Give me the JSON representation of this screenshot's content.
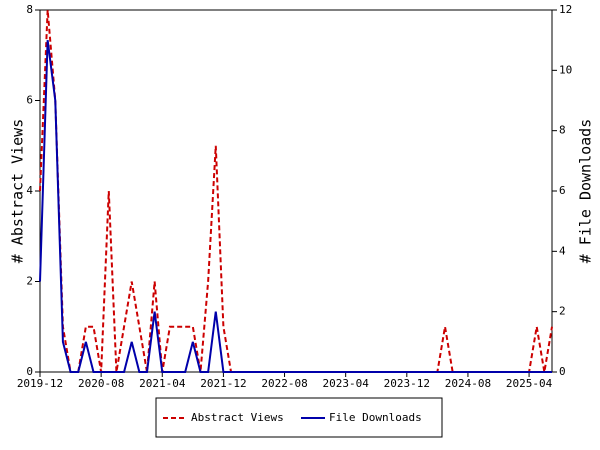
{
  "chart_data": {
    "type": "line",
    "x": [
      "2019-12",
      "2020-01",
      "2020-02",
      "2020-03",
      "2020-04",
      "2020-05",
      "2020-06",
      "2020-07",
      "2020-08",
      "2020-09",
      "2020-10",
      "2020-11",
      "2020-12",
      "2021-01",
      "2021-02",
      "2021-03",
      "2021-04",
      "2021-05",
      "2021-06",
      "2021-07",
      "2021-08",
      "2021-09",
      "2021-10",
      "2021-11",
      "2021-12",
      "2022-01",
      "2022-02",
      "2022-03",
      "2022-04",
      "2022-05",
      "2022-06",
      "2022-07",
      "2022-08",
      "2022-09",
      "2022-10",
      "2022-11",
      "2022-12",
      "2023-01",
      "2023-02",
      "2023-03",
      "2023-04",
      "2023-05",
      "2023-06",
      "2023-07",
      "2023-08",
      "2023-09",
      "2023-10",
      "2023-11",
      "2023-12",
      "2024-01",
      "2024-02",
      "2024-03",
      "2024-04",
      "2024-05",
      "2024-06",
      "2024-07",
      "2024-08",
      "2024-09",
      "2024-10",
      "2024-11",
      "2024-12",
      "2025-01",
      "2025-02",
      "2025-03",
      "2025-04",
      "2025-05",
      "2025-06",
      "2025-07"
    ],
    "xticks": [
      "2019-12",
      "2020-08",
      "2021-04",
      "2021-12",
      "2022-08",
      "2023-04",
      "2023-12",
      "2024-08",
      "2025-04"
    ],
    "ylabel": "# Abstract Views",
    "y2label": "# File Downloads",
    "ylim": [
      0,
      8
    ],
    "yticks": [
      0,
      2,
      4,
      6,
      8
    ],
    "y2lim": [
      0,
      12
    ],
    "y2ticks": [
      0,
      2,
      4,
      6,
      8,
      10,
      12
    ],
    "series": [
      {
        "name": "Abstract Views",
        "color": "#cc0000",
        "dashed": true,
        "values": [
          4,
          8,
          6,
          1,
          0,
          0,
          1,
          1,
          0,
          4,
          0,
          1,
          2,
          1,
          0,
          2,
          0,
          1,
          1,
          1,
          1,
          0,
          2,
          5,
          1,
          0,
          0,
          0,
          0,
          0,
          0,
          0,
          0,
          0,
          0,
          0,
          0,
          0,
          0,
          0,
          0,
          0,
          0,
          0,
          0,
          0,
          0,
          0,
          0,
          0,
          0,
          0,
          0,
          1,
          0,
          0,
          0,
          0,
          0,
          0,
          0,
          0,
          0,
          0,
          0,
          1,
          0,
          1
        ]
      },
      {
        "name": "File Downloads",
        "color": "#0000aa",
        "axis": "y2",
        "values": [
          3,
          11,
          9,
          1,
          0,
          0,
          1,
          0,
          0,
          0,
          0,
          0,
          1,
          0,
          0,
          2,
          0,
          0,
          0,
          0,
          1,
          0,
          0,
          2,
          0,
          0,
          0,
          0,
          0,
          0,
          0,
          0,
          0,
          0,
          0,
          0,
          0,
          0,
          0,
          0,
          0,
          0,
          0,
          0,
          0,
          0,
          0,
          0,
          0,
          0,
          0,
          0,
          0,
          0,
          0,
          0,
          0,
          0,
          0,
          0,
          0,
          0,
          0,
          0,
          0,
          0,
          0,
          0
        ]
      }
    ]
  }
}
